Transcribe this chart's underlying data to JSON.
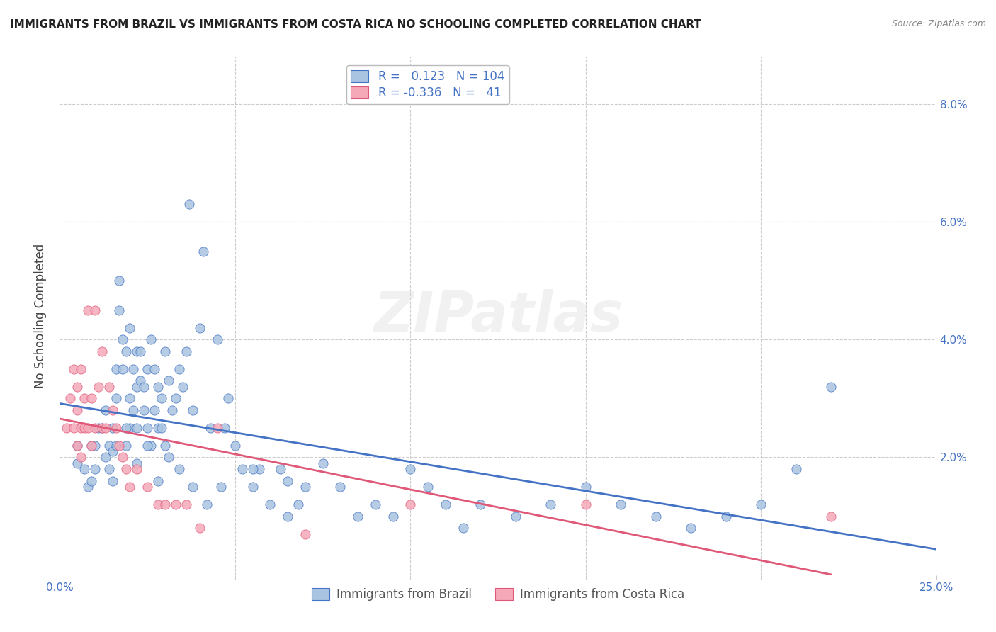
{
  "title": "IMMIGRANTS FROM BRAZIL VS IMMIGRANTS FROM COSTA RICA NO SCHOOLING COMPLETED CORRELATION CHART",
  "source": "Source: ZipAtlas.com",
  "ylabel": "No Schooling Completed",
  "ytick_values": [
    0.0,
    0.02,
    0.04,
    0.06,
    0.08
  ],
  "xlim": [
    0.0,
    0.25
  ],
  "ylim": [
    0.0,
    0.088
  ],
  "brazil_color": "#a8c4e0",
  "costa_rica_color": "#f4a8b8",
  "brazil_line_color": "#4472c4",
  "costa_rica_line_color": "#e05878",
  "brazil_R": 0.123,
  "brazil_N": 104,
  "costa_rica_R": -0.336,
  "costa_rica_N": 41,
  "legend_label_brazil": "Immigrants from Brazil",
  "legend_label_cr": "Immigrants from Costa Rica",
  "watermark": "ZIPatlas",
  "brazil_scatter_x": [
    0.005,
    0.007,
    0.008,
    0.009,
    0.01,
    0.01,
    0.011,
    0.012,
    0.013,
    0.013,
    0.014,
    0.014,
    0.015,
    0.015,
    0.015,
    0.016,
    0.016,
    0.017,
    0.017,
    0.018,
    0.018,
    0.019,
    0.019,
    0.02,
    0.02,
    0.02,
    0.021,
    0.021,
    0.022,
    0.022,
    0.022,
    0.023,
    0.023,
    0.024,
    0.024,
    0.025,
    0.025,
    0.026,
    0.026,
    0.027,
    0.027,
    0.028,
    0.028,
    0.029,
    0.029,
    0.03,
    0.03,
    0.031,
    0.032,
    0.033,
    0.034,
    0.035,
    0.036,
    0.037,
    0.038,
    0.04,
    0.041,
    0.043,
    0.045,
    0.047,
    0.048,
    0.05,
    0.052,
    0.055,
    0.057,
    0.06,
    0.063,
    0.065,
    0.068,
    0.07,
    0.075,
    0.08,
    0.085,
    0.09,
    0.095,
    0.1,
    0.105,
    0.11,
    0.115,
    0.12,
    0.13,
    0.14,
    0.15,
    0.16,
    0.17,
    0.18,
    0.19,
    0.2,
    0.21,
    0.22,
    0.005,
    0.009,
    0.016,
    0.019,
    0.022,
    0.025,
    0.028,
    0.031,
    0.034,
    0.038,
    0.042,
    0.046,
    0.055,
    0.065
  ],
  "brazil_scatter_y": [
    0.019,
    0.018,
    0.015,
    0.022,
    0.022,
    0.018,
    0.025,
    0.025,
    0.02,
    0.028,
    0.018,
    0.022,
    0.016,
    0.021,
    0.025,
    0.03,
    0.035,
    0.045,
    0.05,
    0.035,
    0.04,
    0.038,
    0.022,
    0.03,
    0.025,
    0.042,
    0.028,
    0.035,
    0.032,
    0.025,
    0.038,
    0.033,
    0.038,
    0.028,
    0.032,
    0.025,
    0.035,
    0.04,
    0.022,
    0.035,
    0.028,
    0.025,
    0.032,
    0.03,
    0.025,
    0.038,
    0.022,
    0.033,
    0.028,
    0.03,
    0.035,
    0.032,
    0.038,
    0.063,
    0.028,
    0.042,
    0.055,
    0.025,
    0.04,
    0.025,
    0.03,
    0.022,
    0.018,
    0.015,
    0.018,
    0.012,
    0.018,
    0.016,
    0.012,
    0.015,
    0.019,
    0.015,
    0.01,
    0.012,
    0.01,
    0.018,
    0.015,
    0.012,
    0.008,
    0.012,
    0.01,
    0.012,
    0.015,
    0.012,
    0.01,
    0.008,
    0.01,
    0.012,
    0.018,
    0.032,
    0.022,
    0.016,
    0.022,
    0.025,
    0.019,
    0.022,
    0.016,
    0.02,
    0.018,
    0.015,
    0.012,
    0.015,
    0.018,
    0.01
  ],
  "cr_scatter_x": [
    0.002,
    0.003,
    0.004,
    0.004,
    0.005,
    0.005,
    0.005,
    0.006,
    0.006,
    0.006,
    0.007,
    0.007,
    0.008,
    0.008,
    0.009,
    0.009,
    0.01,
    0.01,
    0.011,
    0.012,
    0.012,
    0.013,
    0.014,
    0.015,
    0.016,
    0.017,
    0.018,
    0.019,
    0.02,
    0.022,
    0.025,
    0.028,
    0.03,
    0.033,
    0.036,
    0.04,
    0.045,
    0.07,
    0.1,
    0.15,
    0.22
  ],
  "cr_scatter_y": [
    0.025,
    0.03,
    0.025,
    0.035,
    0.022,
    0.028,
    0.032,
    0.02,
    0.025,
    0.035,
    0.025,
    0.03,
    0.025,
    0.045,
    0.03,
    0.022,
    0.025,
    0.045,
    0.032,
    0.025,
    0.038,
    0.025,
    0.032,
    0.028,
    0.025,
    0.022,
    0.02,
    0.018,
    0.015,
    0.018,
    0.015,
    0.012,
    0.012,
    0.012,
    0.012,
    0.008,
    0.025,
    0.007,
    0.012,
    0.012,
    0.01
  ]
}
